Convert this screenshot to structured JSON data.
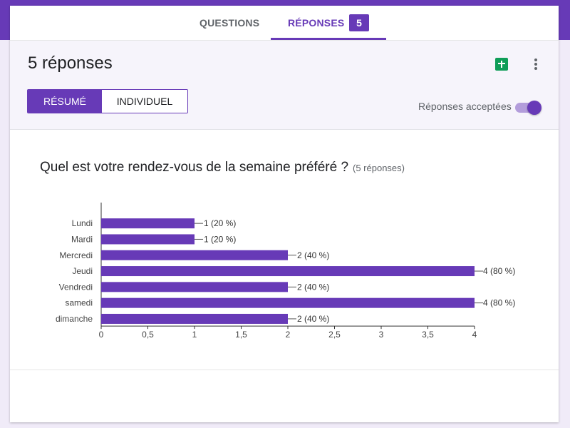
{
  "tabs": {
    "questions_label": "QUESTIONS",
    "responses_label": "RÉPONSES",
    "responses_count": "5"
  },
  "summary": {
    "title": "5 réponses",
    "view_toggle": {
      "summary_label": "RÉSUMÉ",
      "individual_label": "INDIVIDUEL"
    },
    "accepting_label": "Réponses acceptées",
    "accepting_on": true
  },
  "colors": {
    "accent": "#673ab7",
    "sheets_green": "#0f9d58",
    "background": "#f0ebf8"
  },
  "icons": {
    "sheets": "google-sheets-icon",
    "more": "more-vert-icon"
  },
  "question": {
    "title": "Quel est votre rendez-vous de la semaine préféré ?",
    "response_count": "(5 réponses)"
  },
  "chart_data": {
    "type": "bar",
    "orientation": "horizontal",
    "categories": [
      "Lundi",
      "Mardi",
      "Mercredi",
      "Jeudi",
      "Vendredi",
      "samedi",
      "dimanche"
    ],
    "values": [
      1,
      1,
      2,
      4,
      2,
      4,
      2
    ],
    "data_labels": [
      "1 (20 %)",
      "1 (20 %)",
      "2 (40 %)",
      "4 (80 %)",
      "2 (40 %)",
      "4 (80 %)",
      "2 (40 %)"
    ],
    "x_ticks": [
      "0",
      "0,5",
      "1",
      "1,5",
      "2",
      "2,5",
      "3",
      "3,5",
      "4"
    ],
    "xlim": [
      0,
      4
    ],
    "color": "#673ab7",
    "grid": false
  }
}
